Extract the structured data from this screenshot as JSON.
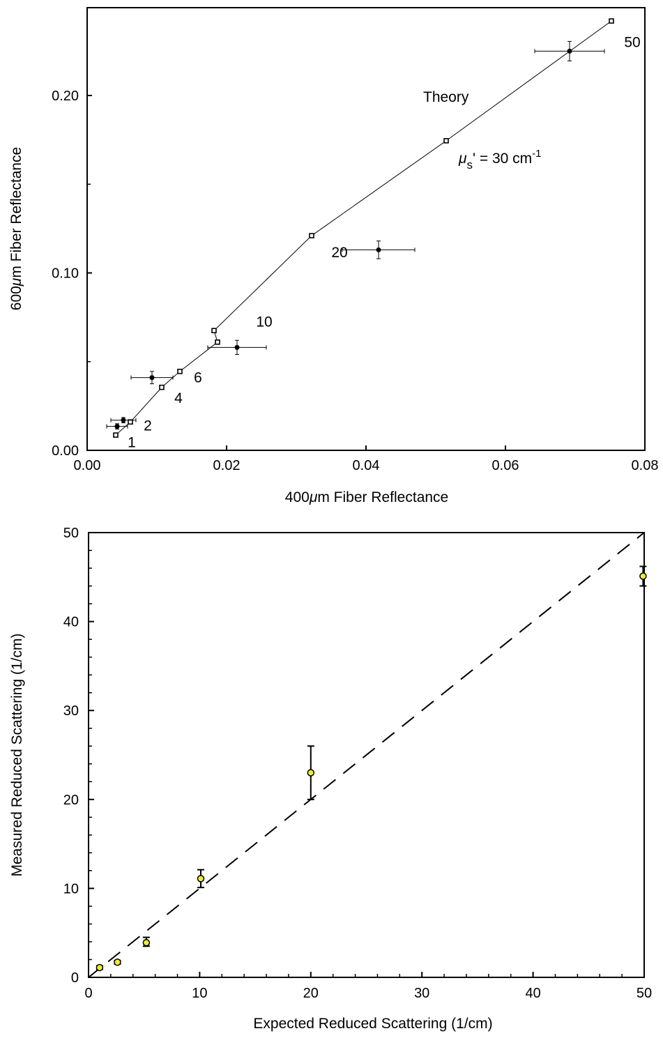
{
  "chart_data": [
    {
      "type": "scatter",
      "xlabel_pre": "400",
      "xlabel_mu": "μ",
      "xlabel_post": "m Fiber Reflectance",
      "ylabel_pre": "600",
      "ylabel_mu": "μ",
      "ylabel_post": "m Fiber Reflectance",
      "xlim": [
        0,
        0.08
      ],
      "ylim": [
        0,
        0.2
      ],
      "x_ticks": [
        "0.00",
        "0.02",
        "0.04",
        "0.06",
        "0.08"
      ],
      "y_ticks": [
        "0.00",
        "0.10",
        "0.20"
      ],
      "annotations": {
        "theory": "Theory",
        "mus_mu": "μ",
        "mus_sub": "s",
        "mus_rest": "' = 30 cm",
        "mus_sup": "-1"
      },
      "series": [
        {
          "name": "Theory",
          "marker": "open-square",
          "points": [
            {
              "x": 0.0041,
              "y": 0.0086
            },
            {
              "x": 0.0062,
              "y": 0.016
            },
            {
              "x": 0.0107,
              "y": 0.0355
            },
            {
              "x": 0.0133,
              "y": 0.0445
            },
            {
              "x": 0.0187,
              "y": 0.061
            },
            {
              "x": 0.0182,
              "y": 0.0675
            },
            {
              "x": 0.0322,
              "y": 0.121
            },
            {
              "x": 0.0515,
              "y": 0.1745
            },
            {
              "x": 0.0752,
              "y": 0.242
            }
          ]
        },
        {
          "name": "Measured",
          "marker": "filled-circle",
          "points": [
            {
              "x": 0.0043,
              "y": 0.0135,
              "xerr": 0.0015,
              "yerr": 0.0015
            },
            {
              "x": 0.0052,
              "y": 0.017,
              "xerr": 0.0018,
              "yerr": 0.0015
            },
            {
              "x": 0.0093,
              "y": 0.041,
              "xerr": 0.003,
              "yerr": 0.0035
            },
            {
              "x": 0.0215,
              "y": 0.058,
              "xerr": 0.0042,
              "yerr": 0.004
            },
            {
              "x": 0.0418,
              "y": 0.113,
              "xerr": 0.0052,
              "yerr": 0.005
            },
            {
              "x": 0.0692,
              "y": 0.225,
              "xerr": 0.005,
              "yerr": 0.0055
            }
          ]
        }
      ],
      "point_labels": [
        {
          "text": "1",
          "x": 0.0064,
          "y": 0.0045
        },
        {
          "text": "2",
          "x": 0.0087,
          "y": 0.014
        },
        {
          "text": "4",
          "x": 0.0131,
          "y": 0.0295
        },
        {
          "text": "6",
          "x": 0.0159,
          "y": 0.041
        },
        {
          "text": "10",
          "x": 0.0254,
          "y": 0.0725
        },
        {
          "text": "20",
          "x": 0.0362,
          "y": 0.1115
        },
        {
          "text": "50",
          "x": 0.0782,
          "y": 0.23
        }
      ]
    },
    {
      "type": "scatter",
      "xlabel": "Expected Reduced Scattering (1/cm)",
      "ylabel": "Measured Reduced Scattering (1/cm)",
      "xlim": [
        0,
        50
      ],
      "ylim": [
        0,
        50
      ],
      "x_ticks": [
        "0",
        "10",
        "20",
        "30",
        "40",
        "50"
      ],
      "y_ticks": [
        "0",
        "10",
        "20",
        "30",
        "40",
        "50"
      ],
      "identity_line": true,
      "marker_color": "#ecec30",
      "series": [
        {
          "name": "Measured",
          "points": [
            {
              "x": 1.0,
              "y": 1.1,
              "yerr_low": 0.2,
              "yerr_high": 0.2
            },
            {
              "x": 2.6,
              "y": 1.7,
              "yerr_low": 0.2,
              "yerr_high": 0.2
            },
            {
              "x": 5.2,
              "y": 3.9,
              "yerr_low": 0.4,
              "yerr_high": 0.6
            },
            {
              "x": 10.1,
              "y": 11.1,
              "yerr_low": 1.0,
              "yerr_high": 1.0
            },
            {
              "x": 20.0,
              "y": 23.0,
              "yerr_low": 3.0,
              "yerr_high": 3.0
            },
            {
              "x": 49.9,
              "y": 45.1,
              "yerr_low": 1.1,
              "yerr_high": 1.1
            }
          ]
        }
      ]
    }
  ]
}
